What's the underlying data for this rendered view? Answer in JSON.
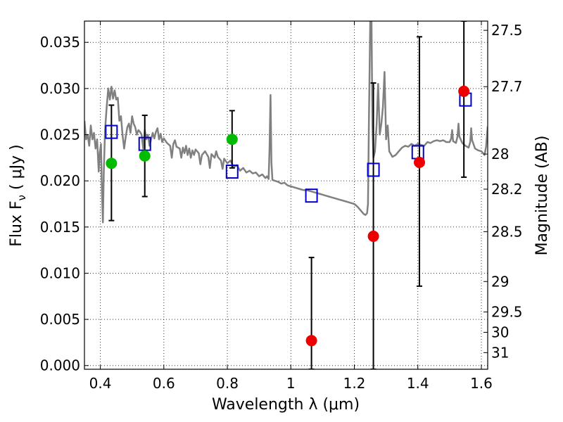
{
  "chart_data": {
    "type": "scatter",
    "xlabel": "Wavelength  λ (μm)",
    "ylabel": "Flux  F",
    "ylabel_sub": "ν",
    "ylabel_unit": "  ( μJy )",
    "ylabel_right": "Magnitude (AB)",
    "xlim": [
      0.35,
      1.62
    ],
    "ylim": [
      -0.0004,
      0.0373
    ],
    "grid": true,
    "x_ticks": [
      0.4,
      0.6,
      0.8,
      1.0,
      1.2,
      1.4,
      1.6
    ],
    "x_tick_labels": [
      "0.4",
      "0.6",
      "0.8",
      "1",
      "1.2",
      "1.4",
      "1.6"
    ],
    "y_ticks": [
      0.0,
      0.005,
      0.01,
      0.015,
      0.02,
      0.025,
      0.03,
      0.035
    ],
    "y_tick_labels": [
      "0.000",
      "0.005",
      "0.010",
      "0.015",
      "0.020",
      "0.025",
      "0.030",
      "0.035"
    ],
    "right_ticks": [
      {
        "label": "27.5",
        "flux": 0.0363
      },
      {
        "label": "27.7",
        "flux": 0.0302
      },
      {
        "label": "28",
        "flux": 0.0229
      },
      {
        "label": "28.2",
        "flux": 0.0191
      },
      {
        "label": "28.5",
        "flux": 0.0145
      },
      {
        "label": "29",
        "flux": 0.0091
      },
      {
        "label": "29.5",
        "flux": 0.0058
      },
      {
        "label": "30",
        "flux": 0.0036
      },
      {
        "label": "31",
        "flux": 0.0014
      }
    ],
    "series": [
      {
        "kind": "line",
        "color": "#808080",
        "points": [
          [
            0.35,
            0.0265
          ],
          [
            0.355,
            0.0245
          ],
          [
            0.36,
            0.025
          ],
          [
            0.365,
            0.0238
          ],
          [
            0.37,
            0.026
          ],
          [
            0.375,
            0.0245
          ],
          [
            0.38,
            0.0252
          ],
          [
            0.385,
            0.0235
          ],
          [
            0.39,
            0.0245
          ],
          [
            0.395,
            0.021
          ],
          [
            0.398,
            0.023
          ],
          [
            0.402,
            0.024
          ],
          [
            0.405,
            0.019
          ],
          [
            0.408,
            0.0155
          ],
          [
            0.411,
            0.021
          ],
          [
            0.415,
            0.0255
          ],
          [
            0.42,
            0.028
          ],
          [
            0.425,
            0.03
          ],
          [
            0.43,
            0.0288
          ],
          [
            0.435,
            0.0302
          ],
          [
            0.44,
            0.0289
          ],
          [
            0.445,
            0.0298
          ],
          [
            0.45,
            0.0288
          ],
          [
            0.455,
            0.029
          ],
          [
            0.46,
            0.0265
          ],
          [
            0.465,
            0.027
          ],
          [
            0.47,
            0.025
          ],
          [
            0.475,
            0.0235
          ],
          [
            0.48,
            0.0248
          ],
          [
            0.485,
            0.0258
          ],
          [
            0.49,
            0.0262
          ],
          [
            0.495,
            0.0252
          ],
          [
            0.5,
            0.027
          ],
          [
            0.505,
            0.0262
          ],
          [
            0.51,
            0.0258
          ],
          [
            0.515,
            0.025
          ],
          [
            0.52,
            0.0255
          ],
          [
            0.525,
            0.0253
          ],
          [
            0.53,
            0.025
          ],
          [
            0.535,
            0.0235
          ],
          [
            0.54,
            0.0255
          ],
          [
            0.545,
            0.0245
          ],
          [
            0.55,
            0.025
          ],
          [
            0.555,
            0.0238
          ],
          [
            0.56,
            0.0245
          ],
          [
            0.565,
            0.0252
          ],
          [
            0.57,
            0.0246
          ],
          [
            0.575,
            0.0253
          ],
          [
            0.58,
            0.0257
          ],
          [
            0.585,
            0.0245
          ],
          [
            0.59,
            0.0251
          ],
          [
            0.595,
            0.0242
          ],
          [
            0.6,
            0.0246
          ],
          [
            0.61,
            0.0241
          ],
          [
            0.62,
            0.0238
          ],
          [
            0.625,
            0.0225
          ],
          [
            0.63,
            0.024
          ],
          [
            0.635,
            0.0244
          ],
          [
            0.64,
            0.0237
          ],
          [
            0.65,
            0.0235
          ],
          [
            0.655,
            0.0225
          ],
          [
            0.66,
            0.0236
          ],
          [
            0.665,
            0.023
          ],
          [
            0.67,
            0.0238
          ],
          [
            0.675,
            0.0228
          ],
          [
            0.68,
            0.0235
          ],
          [
            0.685,
            0.0225
          ],
          [
            0.69,
            0.0233
          ],
          [
            0.695,
            0.0228
          ],
          [
            0.7,
            0.0234
          ],
          [
            0.71,
            0.023
          ],
          [
            0.715,
            0.0218
          ],
          [
            0.72,
            0.0228
          ],
          [
            0.73,
            0.0232
          ],
          [
            0.74,
            0.0226
          ],
          [
            0.745,
            0.0214
          ],
          [
            0.75,
            0.0229
          ],
          [
            0.76,
            0.0225
          ],
          [
            0.765,
            0.0232
          ],
          [
            0.77,
            0.0226
          ],
          [
            0.78,
            0.0222
          ],
          [
            0.785,
            0.0213
          ],
          [
            0.79,
            0.0224
          ],
          [
            0.8,
            0.0219
          ],
          [
            0.81,
            0.0222
          ],
          [
            0.82,
            0.0215
          ],
          [
            0.83,
            0.0217
          ],
          [
            0.84,
            0.0211
          ],
          [
            0.85,
            0.0214
          ],
          [
            0.86,
            0.0209
          ],
          [
            0.87,
            0.0211
          ],
          [
            0.88,
            0.0208
          ],
          [
            0.89,
            0.0209
          ],
          [
            0.9,
            0.0205
          ],
          [
            0.91,
            0.0207
          ],
          [
            0.92,
            0.0203
          ],
          [
            0.925,
            0.0205
          ],
          [
            0.93,
            0.0202
          ],
          [
            0.933,
            0.0235
          ],
          [
            0.936,
            0.0293
          ],
          [
            0.939,
            0.022
          ],
          [
            0.942,
            0.0201
          ],
          [
            0.95,
            0.02
          ],
          [
            0.96,
            0.0199
          ],
          [
            0.97,
            0.0197
          ],
          [
            0.98,
            0.0198
          ],
          [
            0.99,
            0.0195
          ],
          [
            1.0,
            0.0194
          ],
          [
            1.01,
            0.0193
          ],
          [
            1.02,
            0.0192
          ],
          [
            1.03,
            0.0191
          ],
          [
            1.04,
            0.019
          ],
          [
            1.05,
            0.019
          ],
          [
            1.06,
            0.0189
          ],
          [
            1.07,
            0.0188
          ],
          [
            1.08,
            0.0187
          ],
          [
            1.09,
            0.0186
          ],
          [
            1.1,
            0.0185
          ],
          [
            1.11,
            0.0184
          ],
          [
            1.12,
            0.0183
          ],
          [
            1.13,
            0.0182
          ],
          [
            1.14,
            0.0181
          ],
          [
            1.15,
            0.018
          ],
          [
            1.16,
            0.0179
          ],
          [
            1.17,
            0.0178
          ],
          [
            1.18,
            0.0177
          ],
          [
            1.19,
            0.0176
          ],
          [
            1.2,
            0.0175
          ],
          [
            1.21,
            0.0172
          ],
          [
            1.22,
            0.0168
          ],
          [
            1.23,
            0.0164
          ],
          [
            1.235,
            0.0163
          ],
          [
            1.24,
            0.0165
          ],
          [
            1.243,
            0.0175
          ],
          [
            1.246,
            0.027
          ],
          [
            1.25,
            0.0373
          ],
          [
            1.254,
            0.0373
          ],
          [
            1.257,
            0.026
          ],
          [
            1.26,
            0.0225
          ],
          [
            1.265,
            0.0232
          ],
          [
            1.27,
            0.026
          ],
          [
            1.275,
            0.0305
          ],
          [
            1.28,
            0.025
          ],
          [
            1.285,
            0.0262
          ],
          [
            1.29,
            0.028
          ],
          [
            1.295,
            0.0318
          ],
          [
            1.3,
            0.0245
          ],
          [
            1.305,
            0.026
          ],
          [
            1.31,
            0.0232
          ],
          [
            1.32,
            0.0226
          ],
          [
            1.33,
            0.0228
          ],
          [
            1.34,
            0.0232
          ],
          [
            1.35,
            0.0236
          ],
          [
            1.36,
            0.0238
          ],
          [
            1.37,
            0.0237
          ],
          [
            1.38,
            0.024
          ],
          [
            1.39,
            0.0238
          ],
          [
            1.4,
            0.024
          ],
          [
            1.41,
            0.0239
          ],
          [
            1.42,
            0.0238
          ],
          [
            1.43,
            0.0242
          ],
          [
            1.44,
            0.0241
          ],
          [
            1.45,
            0.0243
          ],
          [
            1.46,
            0.0244
          ],
          [
            1.47,
            0.0243
          ],
          [
            1.48,
            0.0244
          ],
          [
            1.49,
            0.0242
          ],
          [
            1.5,
            0.0242
          ],
          [
            1.505,
            0.0246
          ],
          [
            1.508,
            0.0255
          ],
          [
            1.511,
            0.0243
          ],
          [
            1.52,
            0.0241
          ],
          [
            1.525,
            0.0248
          ],
          [
            1.528,
            0.0262
          ],
          [
            1.531,
            0.0248
          ],
          [
            1.54,
            0.0241
          ],
          [
            1.55,
            0.0238
          ],
          [
            1.56,
            0.0236
          ],
          [
            1.565,
            0.0242
          ],
          [
            1.568,
            0.0257
          ],
          [
            1.571,
            0.0244
          ],
          [
            1.58,
            0.0235
          ],
          [
            1.59,
            0.0233
          ],
          [
            1.6,
            0.0232
          ],
          [
            1.61,
            0.0228
          ],
          [
            1.615,
            0.0237
          ],
          [
            1.62,
            0.0259
          ]
        ]
      },
      {
        "kind": "open-squares",
        "color": "#0000cc",
        "points": [
          [
            0.435,
            0.0253
          ],
          [
            0.54,
            0.024
          ],
          [
            0.815,
            0.021
          ],
          [
            1.065,
            0.0184
          ],
          [
            1.26,
            0.0212
          ],
          [
            1.4,
            0.0231
          ],
          [
            1.55,
            0.0288
          ]
        ]
      },
      {
        "kind": "filled-circles",
        "color": "#00bb00",
        "points": [
          [
            0.435,
            0.0219
          ],
          [
            0.54,
            0.0227
          ],
          [
            0.815,
            0.0245
          ]
        ]
      },
      {
        "kind": "filled-circles",
        "color": "#ee0000",
        "points": [
          [
            1.065,
            0.0027
          ],
          [
            1.26,
            0.014
          ],
          [
            1.405,
            0.022
          ],
          [
            1.545,
            0.0297
          ]
        ]
      },
      {
        "kind": "errorbars",
        "color": "#000000",
        "bars": [
          {
            "x": 0.435,
            "low": 0.0157,
            "high": 0.0282
          },
          {
            "x": 0.54,
            "low": 0.0183,
            "high": 0.0271
          },
          {
            "x": 0.815,
            "low": 0.0214,
            "high": 0.0276
          },
          {
            "x": 1.065,
            "low": -0.0004,
            "high": 0.0117
          },
          {
            "x": 1.26,
            "low": -0.0004,
            "high": 0.0306
          },
          {
            "x": 1.405,
            "low": 0.0086,
            "high": 0.0356
          },
          {
            "x": 1.545,
            "low": 0.0204,
            "high": 0.0373
          }
        ]
      }
    ]
  }
}
